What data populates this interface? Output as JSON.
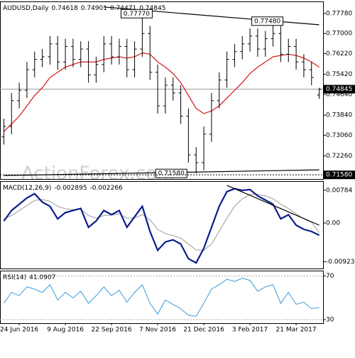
{
  "chart_data": [
    {
      "type": "ohlc",
      "title": "AUDUSD,Daily",
      "watermark": "ActionForex.com",
      "color": "#000000",
      "categories": [
        null,
        null,
        "24 Jun 2016",
        null,
        null,
        null,
        null,
        null,
        "9 Aug 2016",
        null,
        null,
        null,
        null,
        null,
        "22 Sep 2016",
        null,
        null,
        null,
        null,
        null,
        "7 Nov 2016",
        null,
        null,
        null,
        null,
        null,
        "21 Dec 2016",
        null,
        null,
        null,
        null,
        null,
        "3 Feb 2017",
        null,
        null,
        null,
        null,
        null,
        "21 Mar 2017",
        null,
        null,
        null
      ],
      "ohlc": [
        [
          0.73,
          0.737,
          0.727,
          0.734
        ],
        [
          0.734,
          0.747,
          0.731,
          0.744
        ],
        [
          0.744,
          0.751,
          0.741,
          0.748
        ],
        [
          0.748,
          0.759,
          0.745,
          0.756
        ],
        [
          0.756,
          0.763,
          0.753,
          0.76
        ],
        [
          0.76,
          0.764,
          0.757,
          0.761
        ],
        [
          0.761,
          0.769,
          0.758,
          0.766
        ],
        [
          0.766,
          0.769,
          0.756,
          0.759
        ],
        [
          0.759,
          0.768,
          0.756,
          0.765
        ],
        [
          0.765,
          0.768,
          0.757,
          0.76
        ],
        [
          0.76,
          0.767,
          0.757,
          0.764
        ],
        [
          0.764,
          0.767,
          0.751,
          0.754
        ],
        [
          0.754,
          0.761,
          0.751,
          0.758
        ],
        [
          0.758,
          0.769,
          0.755,
          0.766
        ],
        [
          0.766,
          0.769,
          0.758,
          0.761
        ],
        [
          0.761,
          0.768,
          0.758,
          0.765
        ],
        [
          0.765,
          0.768,
          0.753,
          0.756
        ],
        [
          0.756,
          0.767,
          0.753,
          0.764
        ],
        [
          0.764,
          0.7777,
          0.761,
          0.77
        ],
        [
          0.77,
          0.773,
          0.752,
          0.755
        ],
        [
          0.755,
          0.758,
          0.739,
          0.742
        ],
        [
          0.742,
          0.753,
          0.739,
          0.75
        ],
        [
          0.75,
          0.753,
          0.744,
          0.747
        ],
        [
          0.747,
          0.75,
          0.735,
          0.738
        ],
        [
          0.738,
          0.741,
          0.72,
          0.723
        ],
        [
          0.723,
          0.726,
          0.7158,
          0.72
        ],
        [
          0.72,
          0.734,
          0.717,
          0.731
        ],
        [
          0.731,
          0.747,
          0.728,
          0.744
        ],
        [
          0.744,
          0.755,
          0.741,
          0.752
        ],
        [
          0.752,
          0.763,
          0.749,
          0.76
        ],
        [
          0.76,
          0.766,
          0.757,
          0.763
        ],
        [
          0.763,
          0.769,
          0.76,
          0.766
        ],
        [
          0.766,
          0.772,
          0.763,
          0.769
        ],
        [
          0.769,
          0.772,
          0.761,
          0.764
        ],
        [
          0.764,
          0.771,
          0.761,
          0.768
        ],
        [
          0.768,
          0.7748,
          0.765,
          0.77
        ],
        [
          0.77,
          0.773,
          0.759,
          0.762
        ],
        [
          0.762,
          0.768,
          0.759,
          0.765
        ],
        [
          0.765,
          0.768,
          0.756,
          0.759
        ],
        [
          0.759,
          0.762,
          0.753,
          0.756
        ],
        [
          0.756,
          0.759,
          0.75,
          0.753
        ],
        [
          0.74618,
          0.74901,
          0.74471,
          0.74845
        ]
      ],
      "ma": {
        "color": "#d7141a",
        "values": [
          0.732,
          0.735,
          0.738,
          0.742,
          0.746,
          0.749,
          0.753,
          0.755,
          0.757,
          0.758,
          0.759,
          0.759,
          0.759,
          0.76,
          0.7605,
          0.761,
          0.7605,
          0.761,
          0.7625,
          0.762,
          0.759,
          0.757,
          0.7545,
          0.751,
          0.746,
          0.741,
          0.739,
          0.74,
          0.742,
          0.745,
          0.748,
          0.751,
          0.7545,
          0.757,
          0.759,
          0.761,
          0.7615,
          0.762,
          0.7615,
          0.7605,
          0.759,
          0.757
        ]
      },
      "ylim": [
        0.7142,
        0.7808
      ],
      "yticks": [
        {
          "value": 0.7778,
          "label": "0.77780"
        },
        {
          "value": 0.77,
          "label": "0.77000"
        },
        {
          "value": 0.7622,
          "label": "0.76220"
        },
        {
          "value": 0.7542,
          "label": "0.75420"
        },
        {
          "value": 0.7464,
          "label": "0.74640"
        },
        {
          "value": 0.7384,
          "label": "0.73840"
        },
        {
          "value": 0.7306,
          "label": "0.73060"
        },
        {
          "value": 0.7226,
          "label": "0.72260"
        }
      ],
      "annotations": [
        {
          "value": 0.7777,
          "label": "0.77770"
        },
        {
          "value": 0.7748,
          "label": "0.77480"
        },
        {
          "value": 0.7158,
          "label": "0.71580"
        }
      ],
      "trendlines": [
        {
          "from": [
            13,
            0.7803
          ],
          "to": [
            41,
            0.7734
          ]
        },
        {
          "from": [
            0,
            0.715
          ],
          "to": [
            41,
            0.7172
          ]
        }
      ]
    },
    {
      "type": "macd",
      "title": "MACD(12,26,9)",
      "series": [
        {
          "color": "#0b1d8c",
          "values": [
            0.0005,
            0.003,
            0.0045,
            0.006,
            0.007,
            0.005,
            0.004,
            0.001,
            0.0025,
            0.003,
            0.0035,
            -0.001,
            0.0005,
            0.003,
            0.002,
            0.003,
            -0.001,
            0.0015,
            0.004,
            -0.002,
            -0.0065,
            -0.0045,
            -0.004,
            -0.005,
            -0.0085,
            -0.0095,
            -0.006,
            -0.001,
            0.004,
            0.0075,
            0.0082,
            0.0078,
            0.008,
            0.0065,
            0.0055,
            0.0045,
            0.001,
            0.002,
            -0.0005,
            -0.0015,
            -0.002,
            -0.002895
          ]
        },
        {
          "color": "#9a9a9a",
          "values": [
            0.001,
            0.0018,
            0.003,
            0.0042,
            0.0054,
            0.0056,
            0.0052,
            0.004,
            0.0034,
            0.0032,
            0.0033,
            0.0018,
            0.0012,
            0.0018,
            0.0019,
            0.0022,
            0.0012,
            0.0012,
            0.002,
            0.0008,
            -0.0015,
            -0.0025,
            -0.003,
            -0.0036,
            -0.005,
            -0.0064,
            -0.0065,
            -0.005,
            -0.002,
            0.0012,
            0.004,
            0.0058,
            0.0068,
            0.0069,
            0.0065,
            0.0058,
            0.0045,
            0.0035,
            0.0022,
            0.001,
            0.0002,
            -0.002266
          ]
        }
      ],
      "ylim": [
        -0.0105,
        0.0095
      ],
      "yticks": [
        0.00784,
        {
          "value": 0,
          "label": "0.00"
        },
        -0.00923
      ],
      "trendlines": [
        {
          "from": [
            29,
            0.009
          ],
          "to": [
            41,
            -0.0005
          ]
        }
      ]
    },
    {
      "type": "line",
      "title": "RSI(14)",
      "color": "#3a9ad9",
      "values": [
        45,
        55,
        52,
        60,
        58,
        55,
        62,
        48,
        55,
        50,
        56,
        45,
        52,
        60,
        52,
        57,
        46,
        55,
        62,
        45,
        35,
        48,
        44,
        40,
        34,
        33,
        45,
        58,
        62,
        67,
        65,
        68,
        66,
        56,
        60,
        62,
        45,
        55,
        44,
        46,
        40,
        41.0907
      ],
      "ylim": [
        28,
        73
      ],
      "yticks": [
        70,
        30
      ]
    }
  ]
}
